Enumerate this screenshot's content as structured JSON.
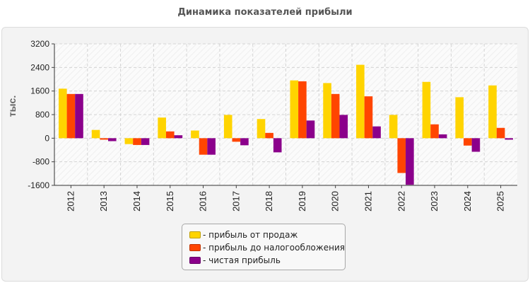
{
  "chart_data": {
    "type": "bar",
    "title": "Динамика показателей прибыли",
    "ylabel": "тыс.",
    "xlabel": "",
    "ylim": [
      -1600,
      3200
    ],
    "yticks": [
      "3200",
      "2400",
      "1600",
      "800",
      "0",
      "-800",
      "-1600"
    ],
    "ytick_values": [
      3200,
      2400,
      1600,
      800,
      0,
      -800,
      -1600
    ],
    "grid": true,
    "legend_position": "bottom-center",
    "categories": [
      "2012",
      "2013",
      "2014",
      "2015",
      "2016",
      "2017",
      "2018",
      "2019",
      "2020",
      "2021",
      "2022",
      "2023",
      "2024",
      "2025"
    ],
    "series": [
      {
        "name": "- прибыль от продаж",
        "color": "#ffd400",
        "values": [
          1680,
          280,
          -200,
          700,
          260,
          790,
          650,
          1960,
          1870,
          2490,
          790,
          1910,
          1390,
          1790
        ]
      },
      {
        "name": "- прибыль до налогообложения",
        "color": "#ff4500",
        "values": [
          1500,
          -50,
          -230,
          230,
          -560,
          -120,
          180,
          1930,
          1500,
          1420,
          -1180,
          470,
          -250,
          350
        ]
      },
      {
        "name": "- чистая прибыль",
        "color": "#8b008b",
        "values": [
          1500,
          -100,
          -230,
          100,
          -560,
          -240,
          -480,
          600,
          790,
          400,
          -1580,
          130,
          -460,
          -50
        ]
      }
    ]
  }
}
